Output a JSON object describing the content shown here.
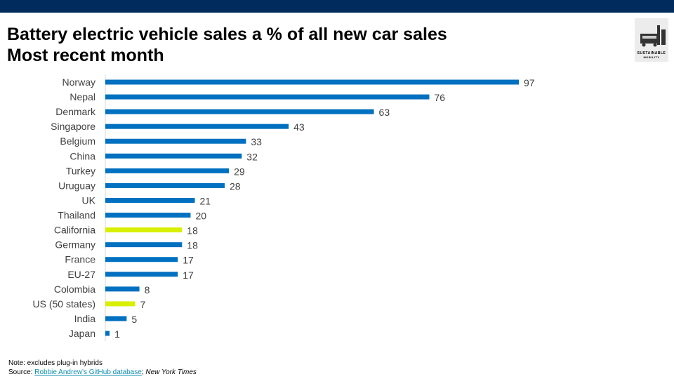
{
  "header": {
    "title_line1": "Battery electric vehicle sales a % of all new car sales",
    "title_line2": "Most recent month"
  },
  "logo": {
    "text1": "SUSTAINABLE",
    "text2": "MOBILITY"
  },
  "footer": {
    "note": "Note: excludes plug-in hybrids",
    "source_label": "Source: ",
    "source_link": "Robbie Andrew's GitHub database",
    "source_sep": "; ",
    "source_other": "New York Times"
  },
  "colors": {
    "bar": "#0070c0",
    "highlight": "#d9ef00",
    "topbar": "#002b5c"
  },
  "chart_data": {
    "type": "bar",
    "orientation": "horizontal",
    "title": "Battery electric vehicle sales a % of all new car sales",
    "categories": [
      "Norway",
      "Nepal",
      "Denmark",
      "Singapore",
      "Belgium",
      "China",
      "Turkey",
      "Uruguay",
      "UK",
      "Thailand",
      "California",
      "Germany",
      "France",
      "EU-27",
      "Colombia",
      "US (50 states)",
      "India",
      "Japan"
    ],
    "values": [
      97,
      76,
      63,
      43,
      33,
      32,
      29,
      28,
      21,
      20,
      18,
      18,
      17,
      17,
      8,
      7,
      5,
      1
    ],
    "highlighted": [
      "California",
      "US (50 states)"
    ],
    "xlim": [
      0,
      100
    ],
    "grid": false
  }
}
